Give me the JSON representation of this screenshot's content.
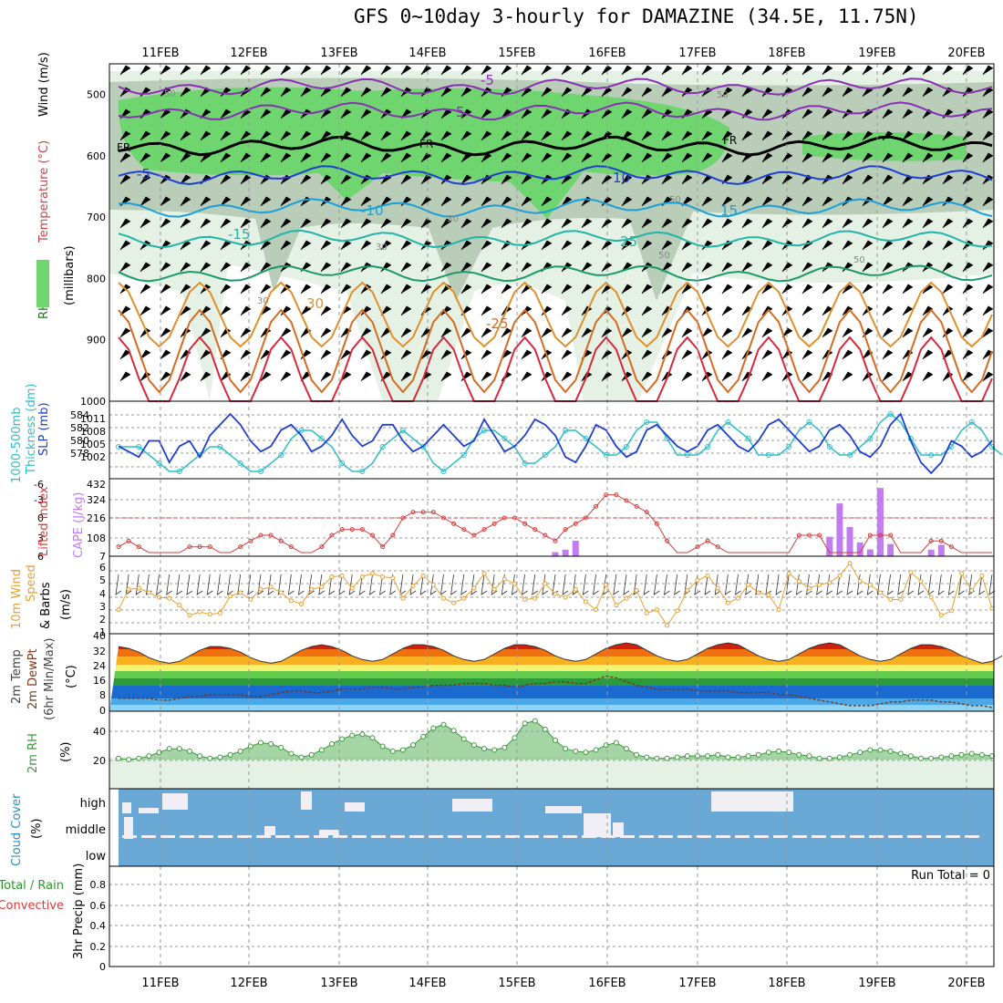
{
  "title": "GFS 0~10day 3-hourly for DAMAZINE (34.5E, 11.75N)",
  "dates": [
    "11FEB",
    "12FEB",
    "13FEB",
    "14FEB",
    "15FEB",
    "16FEB",
    "17FEB",
    "18FEB",
    "19FEB",
    "20FEB"
  ],
  "colors": {
    "grid": "#999999",
    "rh_light": "#e4f1e4",
    "rh_mid": "#b9cdb9",
    "rh_dark": "#6fd66f",
    "slp": "#1f3fd0",
    "thickness": "#2ebfc8",
    "lifted": "#d83b3b",
    "cape": "#c07cf0",
    "wind": "#e8a030",
    "rh2m": "#3a9a3a",
    "cloud": "#6aa9d6",
    "cloud_gap": "#f1eef6"
  },
  "chart_data": [
    {
      "type": "heatmap",
      "name": "upper",
      "ylabel_parts": [
        "RH (%)",
        "Temperature (°C)",
        "Wind (m/s)",
        "(millibars)"
      ],
      "ylim": [
        1000,
        450
      ],
      "yticks": [
        500,
        600,
        700,
        800,
        900,
        1000
      ],
      "isotherm_labels": [
        "-5",
        "5",
        "-5",
        "10",
        "-10",
        "15",
        "-15",
        "25",
        "30",
        "-25"
      ],
      "fr_labels": [
        "FR",
        "FR",
        "FR"
      ],
      "rh_labels": [
        "50",
        "50",
        "50",
        "30",
        "30",
        "50",
        "50",
        "30"
      ]
    },
    {
      "type": "line",
      "name": "slp_thickness",
      "ylabel_parts": [
        "1000-500mb",
        "Thickness (dm)",
        "SLP (mb)"
      ],
      "left_ticks": [
        "584",
        "582",
        "580",
        "578"
      ],
      "right_ticks": [
        "1011",
        "1008",
        "1005",
        "1002"
      ],
      "series": [
        {
          "name": "SLP",
          "values": [
            1006,
            1005,
            1004,
            1007,
            1007,
            1003,
            1006,
            1007,
            1004,
            1008,
            1010,
            1012,
            1010,
            1007,
            1005,
            1006,
            1009,
            1010,
            1008,
            1005,
            1006,
            1008,
            1011,
            1008,
            1006,
            1007,
            1010,
            1010,
            1007,
            1005,
            1006,
            1008,
            1010,
            1008,
            1006,
            1007,
            1011,
            1008,
            1005,
            1006,
            1008,
            1011,
            1010,
            1008,
            1004,
            1003,
            1006,
            1010,
            1009,
            1006,
            1004,
            1005,
            1009,
            1010,
            1008,
            1006,
            1005,
            1006,
            1009,
            1010,
            1008,
            1006,
            1005,
            1007,
            1010,
            1011,
            1009,
            1007,
            1005,
            1006,
            1009,
            1010,
            1008,
            1005,
            1004,
            1006,
            1010,
            1012,
            1007,
            1003,
            1001,
            1003,
            1007,
            1006,
            1004,
            1005,
            1007
          ]
        },
        {
          "name": "Thickness",
          "values": [
            581,
            581,
            581,
            580,
            579,
            578,
            578,
            579,
            580,
            581,
            581,
            580,
            579,
            578,
            578,
            579,
            580,
            582,
            583,
            583,
            582,
            581,
            579,
            578,
            578,
            579,
            581,
            582,
            583,
            582,
            581,
            579,
            578,
            579,
            580,
            582,
            583,
            583,
            582,
            581,
            579,
            579,
            580,
            581,
            583,
            583,
            582,
            581,
            580,
            580,
            581,
            583,
            584,
            584,
            582,
            580,
            580,
            580,
            581,
            583,
            584,
            583,
            582,
            580,
            580,
            580,
            581,
            583,
            584,
            583,
            581,
            580,
            580,
            581,
            582,
            584,
            585,
            584,
            582,
            580,
            580,
            580,
            581,
            583,
            584,
            583,
            581,
            580
          ]
        }
      ]
    },
    {
      "type": "bar",
      "name": "lifted_cape",
      "ylabel_parts": [
        "Lifted Index",
        "CAPE (J/kg)"
      ],
      "left_ticks": [
        "-6",
        "-3",
        "0",
        "3",
        "6"
      ],
      "right_ticks": [
        "432",
        "324",
        "216",
        "108",
        "7"
      ],
      "cape": [
        0,
        0,
        0,
        0,
        0,
        0,
        0,
        0,
        0,
        0,
        0,
        0,
        0,
        0,
        0,
        0,
        0,
        0,
        0,
        0,
        0,
        0,
        0,
        0,
        0,
        0,
        0,
        0,
        0,
        0,
        0,
        0,
        0,
        0,
        0,
        0,
        0,
        0,
        0,
        0,
        0,
        0,
        0,
        25,
        40,
        95,
        0,
        0,
        0,
        0,
        0,
        0,
        0,
        0,
        0,
        0,
        0,
        0,
        0,
        0,
        0,
        0,
        0,
        0,
        0,
        0,
        0,
        0,
        0,
        0,
        120,
        325,
        180,
        85,
        42,
        420,
        75,
        0,
        0,
        0,
        40,
        70,
        0,
        0,
        0,
        0,
        0
      ],
      "lifted": [
        5,
        4,
        5,
        6,
        6,
        6,
        6,
        5,
        5,
        5,
        6,
        6,
        5,
        4,
        3,
        3,
        4,
        5,
        6,
        6,
        5,
        3,
        2,
        2,
        2,
        3,
        5,
        3,
        0,
        -1,
        -1,
        -1,
        0,
        1,
        2,
        3,
        2,
        1,
        0,
        0,
        1,
        2,
        3,
        4,
        2,
        1,
        0,
        -2,
        -4,
        -4,
        -3,
        -2,
        -1,
        1,
        4,
        6,
        6,
        5,
        4,
        5,
        6,
        6,
        6,
        6,
        6,
        6,
        6,
        3,
        3,
        3,
        6,
        6,
        6,
        6,
        3,
        3,
        3,
        6,
        6,
        6,
        4,
        4,
        5,
        6,
        6,
        6,
        6
      ]
    },
    {
      "type": "line",
      "name": "wind10m",
      "ylabel_parts": [
        "10m Wind",
        "Speed",
        "& Barbs",
        "(m/s)"
      ],
      "yticks": [
        "6",
        "5",
        "4",
        "3",
        "2",
        "1"
      ],
      "values": [
        2.6,
        4.4,
        4.5,
        4.1,
        3.7,
        3.6,
        3.0,
        2.1,
        2.4,
        2.2,
        2.3,
        3.8,
        4.1,
        3.5,
        4.4,
        4.6,
        4.1,
        3.4,
        3.1,
        4.4,
        4.6,
        5.5,
        5.6,
        4.5,
        5.5,
        5.8,
        5.5,
        5.4,
        3.6,
        4.7,
        5.6,
        4.8,
        3.6,
        3.2,
        3.6,
        4.5,
        5.8,
        4.4,
        5.3,
        4.9,
        3.5,
        3.6,
        4.9,
        4.0,
        3.7,
        4.4,
        3.3,
        2.6,
        4.8,
        3.0,
        3.6,
        4.3,
        2.3,
        2.6,
        1.2,
        2.5,
        4.3,
        5.2,
        5.6,
        4.5,
        3.2,
        3.6,
        4.8,
        4.1,
        3.9,
        2.6,
        5.8,
        5.1,
        4.5,
        4.8,
        5.0,
        5.6,
        6.7,
        5.1,
        4.8,
        4.1,
        3.5,
        3.5,
        5.9,
        5.1,
        3.7,
        2.1,
        2.5,
        5.8,
        4.3,
        5.6,
        2.7
      ]
    },
    {
      "type": "area",
      "name": "temp2m",
      "ylabel_parts": [
        "2m Temp",
        "2m DewPt",
        "(6hr Min/Max)",
        "(°C)"
      ],
      "yticks": [
        "40",
        "32",
        "24",
        "16",
        "8",
        "0"
      ],
      "temp": [
        35,
        34,
        32,
        29,
        27,
        26,
        27,
        30,
        33,
        35,
        35,
        34,
        32,
        29,
        27,
        26,
        27,
        30,
        33,
        35,
        36,
        35,
        33,
        30,
        28,
        27,
        28,
        31,
        34,
        36,
        36,
        35,
        33,
        30,
        28,
        27,
        28,
        31,
        34,
        36,
        36,
        35,
        33,
        30,
        28,
        27,
        28,
        31,
        34,
        36,
        37,
        36,
        33,
        30,
        28,
        27,
        28,
        31,
        34,
        36,
        37,
        36,
        33,
        30,
        28,
        27,
        28,
        31,
        34,
        36,
        37,
        36,
        33,
        30,
        28,
        27,
        28,
        31,
        34,
        36,
        36,
        35,
        33,
        30,
        28,
        26,
        27,
        30
      ],
      "dewpoint": [
        7,
        7,
        7,
        7,
        6,
        6,
        7,
        8,
        8,
        9,
        9,
        9,
        9,
        8,
        8,
        9,
        10,
        11,
        11,
        10,
        10,
        11,
        12,
        12,
        12,
        13,
        13,
        12,
        12,
        13,
        13,
        14,
        14,
        14,
        15,
        15,
        15,
        14,
        14,
        13,
        14,
        15,
        15,
        16,
        16,
        15,
        15,
        17,
        19,
        18,
        16,
        14,
        13,
        12,
        12,
        12,
        12,
        11,
        11,
        11,
        11,
        10,
        10,
        10,
        10,
        9,
        9,
        8,
        7,
        6,
        5,
        4,
        3,
        3,
        3,
        4,
        5,
        5,
        6,
        6,
        6,
        5,
        5,
        4,
        3,
        3,
        2
      ]
    },
    {
      "type": "area",
      "name": "rh2m",
      "ylabel_parts": [
        "2m RH",
        "(%)"
      ],
      "yticks": [
        "40",
        "20"
      ],
      "values": [
        19,
        18,
        19,
        21,
        24,
        27,
        27,
        25,
        21,
        19,
        20,
        22,
        25,
        29,
        32,
        31,
        28,
        23,
        20,
        22,
        26,
        31,
        35,
        38,
        39,
        36,
        29,
        25,
        26,
        30,
        37,
        44,
        47,
        42,
        35,
        30,
        27,
        26,
        28,
        36,
        48,
        50,
        43,
        34,
        27,
        25,
        24,
        26,
        30,
        32,
        27,
        22,
        20,
        19,
        19,
        20,
        21,
        21,
        21,
        22,
        20,
        20,
        21,
        22,
        24,
        25,
        24,
        22,
        21,
        19,
        19,
        20,
        22,
        24,
        26,
        26,
        25,
        23,
        21,
        19,
        19,
        20,
        21,
        22,
        23,
        22,
        21
      ]
    },
    {
      "type": "bar",
      "name": "cloud",
      "ylabel_parts": [
        "Cloud Cover",
        "(%)"
      ],
      "levels": [
        "high",
        "middle",
        "low"
      ]
    },
    {
      "type": "bar",
      "name": "precip",
      "ylabel_parts": [
        "Total / Rain",
        "Convective",
        "3hr Precip (mm)"
      ],
      "run_total": "Run Total = 0",
      "yticks": [
        "0.8",
        "0.6",
        "0.4",
        "0.2",
        "0"
      ],
      "values": []
    }
  ]
}
